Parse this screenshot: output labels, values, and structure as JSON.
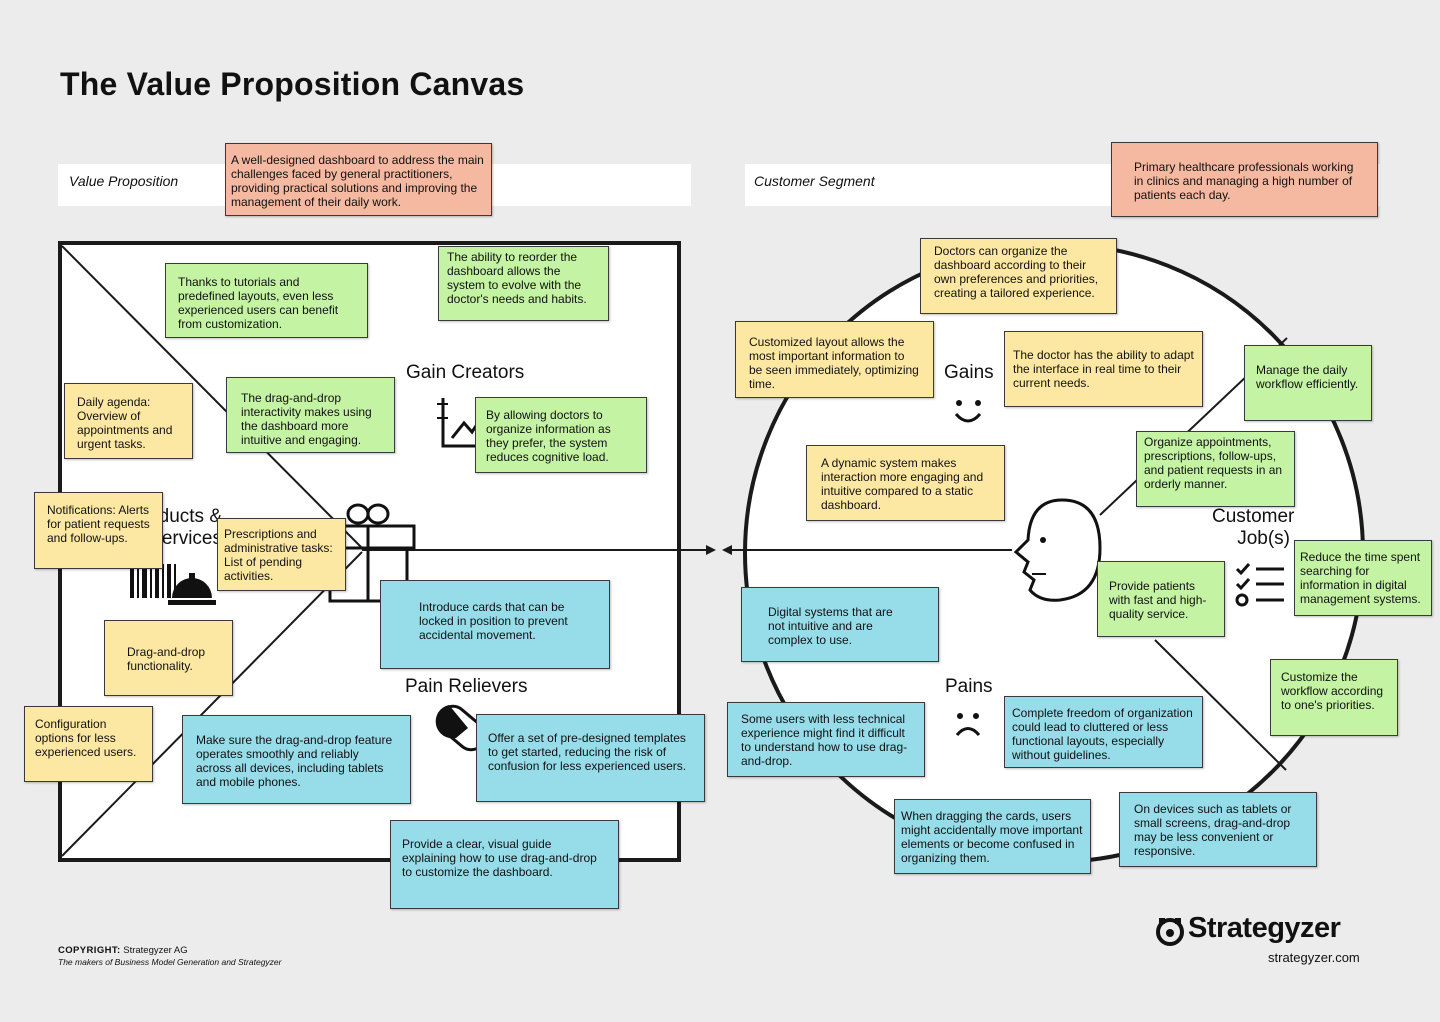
{
  "title": "The Value Proposition Canvas",
  "value_proposition": {
    "label": "Value Proposition",
    "note": "A well-designed dashboard to address the main challenges faced by general practitioners, providing practical solutions and improving the management of their daily work."
  },
  "customer_segment": {
    "label": "Customer Segment",
    "note": "Primary healthcare professionals working in clinics and managing a high number of patients each day."
  },
  "sections": {
    "gain_creators": "Gain Creators",
    "pain_relievers": "Pain Relievers",
    "products_services": "Products & Services",
    "gains": "Gains",
    "pains": "Pains",
    "customer_jobs": "Customer Job(s)"
  },
  "notes": {
    "gc_tutorials": "Thanks to tutorials and predefined layouts, even less experienced users can benefit from customization.",
    "gc_reorder": "The ability to reorder the dashboard allows the system to evolve with the doctor's needs and habits.",
    "gc_dragdrop": "The drag-and-drop interactivity makes using the dashboard more intuitive and engaging.",
    "gc_organize": "By allowing doctors to organize information as they prefer, the system reduces cognitive load.",
    "ps_agenda": "Daily agenda: Overview of appointments and urgent tasks.",
    "ps_notifications": "Notifications: Alerts for patient requests and follow-ups.",
    "ps_prescriptions": "Prescriptions and administrative tasks: List of pending activities.",
    "ps_dragdrop": "Drag-and-drop functionality.",
    "ps_config": "Configuration options for less experienced users.",
    "pr_lock": "Introduce cards that can be locked in position to prevent accidental movement.",
    "pr_smooth": "Make sure the drag-and-drop feature operates smoothly and reliably across all devices, including tablets and mobile phones.",
    "pr_templates": "Offer a set of pre-designed templates to get started, reducing the risk of confusion for less experienced users.",
    "pr_guide": "Provide a clear, visual guide explaining how to use drag-and-drop to customize the dashboard.",
    "g_tailored": "Doctors can organize the dashboard according to their own preferences and priorities, creating a tailored experience.",
    "g_layout": "Customized layout allows the most important information to be seen immediately, optimizing time.",
    "g_adapt": "The doctor has the ability to adapt the interface in real time to their current needs.",
    "g_dynamic": "A dynamic system makes interaction more engaging and intuitive compared to a static dashboard.",
    "cj_workflow": "Manage the daily workflow efficiently.",
    "cj_organize": "Organize appointments, prescriptions, follow-ups, and patient requests in an orderly manner.",
    "cj_service": "Provide patients with fast and high-quality service.",
    "cj_reduce": "Reduce the time spent searching for information in digital management systems.",
    "cj_customize": "Customize the workflow according to one's priorities.",
    "p_digital": "Digital systems that are not intuitive and are complex to use.",
    "p_technical": "Some users with less technical experience might find it difficult to understand how to use drag-and-drop.",
    "p_freedom": "Complete freedom of organization could lead to cluttered or less functional layouts, especially without guidelines.",
    "p_dragging": "When dragging the cards, users might accidentally move important elements or become confused in organizing them.",
    "p_devices": "On devices such as tablets or small screens, drag-and-drop may be less convenient or responsive."
  },
  "footer": {
    "copyright_label": "COPYRIGHT:",
    "copyright_owner": " Strategyzer AG",
    "tagline": "The makers of Business Model Generation and Strategyzer",
    "brand": "Strategyzer",
    "url": "strategyzer.com"
  },
  "colors": {
    "salmon": "#f5b8a0",
    "yellow": "#fde8a3",
    "green": "#c4f3a4",
    "blue": "#97dce9"
  }
}
